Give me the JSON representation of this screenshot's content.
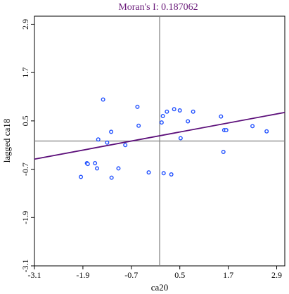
{
  "chart_data": {
    "type": "scatter",
    "title": "Moran's I: 0.187062",
    "xlabel": "ca20",
    "ylabel": "lagged ca18",
    "xlim": [
      -3.1,
      3.1
    ],
    "ylim": [
      -3.1,
      3.1
    ],
    "x_ticks": [
      "-3.1",
      "-1.9",
      "-0.7",
      "0.5",
      "1.7",
      "2.9"
    ],
    "y_ticks": [
      "-3.1",
      "-1.9",
      "-0.7",
      "0.5",
      "1.7",
      "2.9"
    ],
    "reference_lines": {
      "x": 0,
      "y": 0
    },
    "regression": {
      "slope": 0.187062,
      "intercept": 0.13
    },
    "points": [
      {
        "x": -1.95,
        "y": -0.89
      },
      {
        "x": -1.8,
        "y": -0.55
      },
      {
        "x": -1.78,
        "y": -0.57
      },
      {
        "x": -1.6,
        "y": -0.55
      },
      {
        "x": -1.55,
        "y": -0.68
      },
      {
        "x": -1.52,
        "y": 0.04
      },
      {
        "x": -1.4,
        "y": 1.03
      },
      {
        "x": -1.3,
        "y": -0.04
      },
      {
        "x": -1.2,
        "y": 0.23
      },
      {
        "x": -1.19,
        "y": -0.91
      },
      {
        "x": -1.02,
        "y": -0.68
      },
      {
        "x": -0.85,
        "y": -0.1
      },
      {
        "x": -0.55,
        "y": 0.85
      },
      {
        "x": -0.52,
        "y": 0.38
      },
      {
        "x": -0.27,
        "y": -0.78
      },
      {
        "x": 0.05,
        "y": 0.46
      },
      {
        "x": 0.08,
        "y": 0.62
      },
      {
        "x": 0.1,
        "y": -0.8
      },
      {
        "x": 0.18,
        "y": 0.73
      },
      {
        "x": 0.29,
        "y": -0.83
      },
      {
        "x": 0.36,
        "y": 0.79
      },
      {
        "x": 0.5,
        "y": 0.76
      },
      {
        "x": 0.52,
        "y": 0.07
      },
      {
        "x": 0.7,
        "y": 0.49
      },
      {
        "x": 0.83,
        "y": 0.73
      },
      {
        "x": 1.52,
        "y": 0.61
      },
      {
        "x": 1.58,
        "y": -0.27
      },
      {
        "x": 1.6,
        "y": 0.27
      },
      {
        "x": 1.65,
        "y": 0.27
      },
      {
        "x": 2.3,
        "y": 0.37
      },
      {
        "x": 2.65,
        "y": 0.24
      }
    ],
    "colors": {
      "points": "#1f4fff",
      "regression": "#5c0f7a",
      "reference": "#808080",
      "axes": "#000000",
      "title": "#6a1b7a"
    }
  }
}
